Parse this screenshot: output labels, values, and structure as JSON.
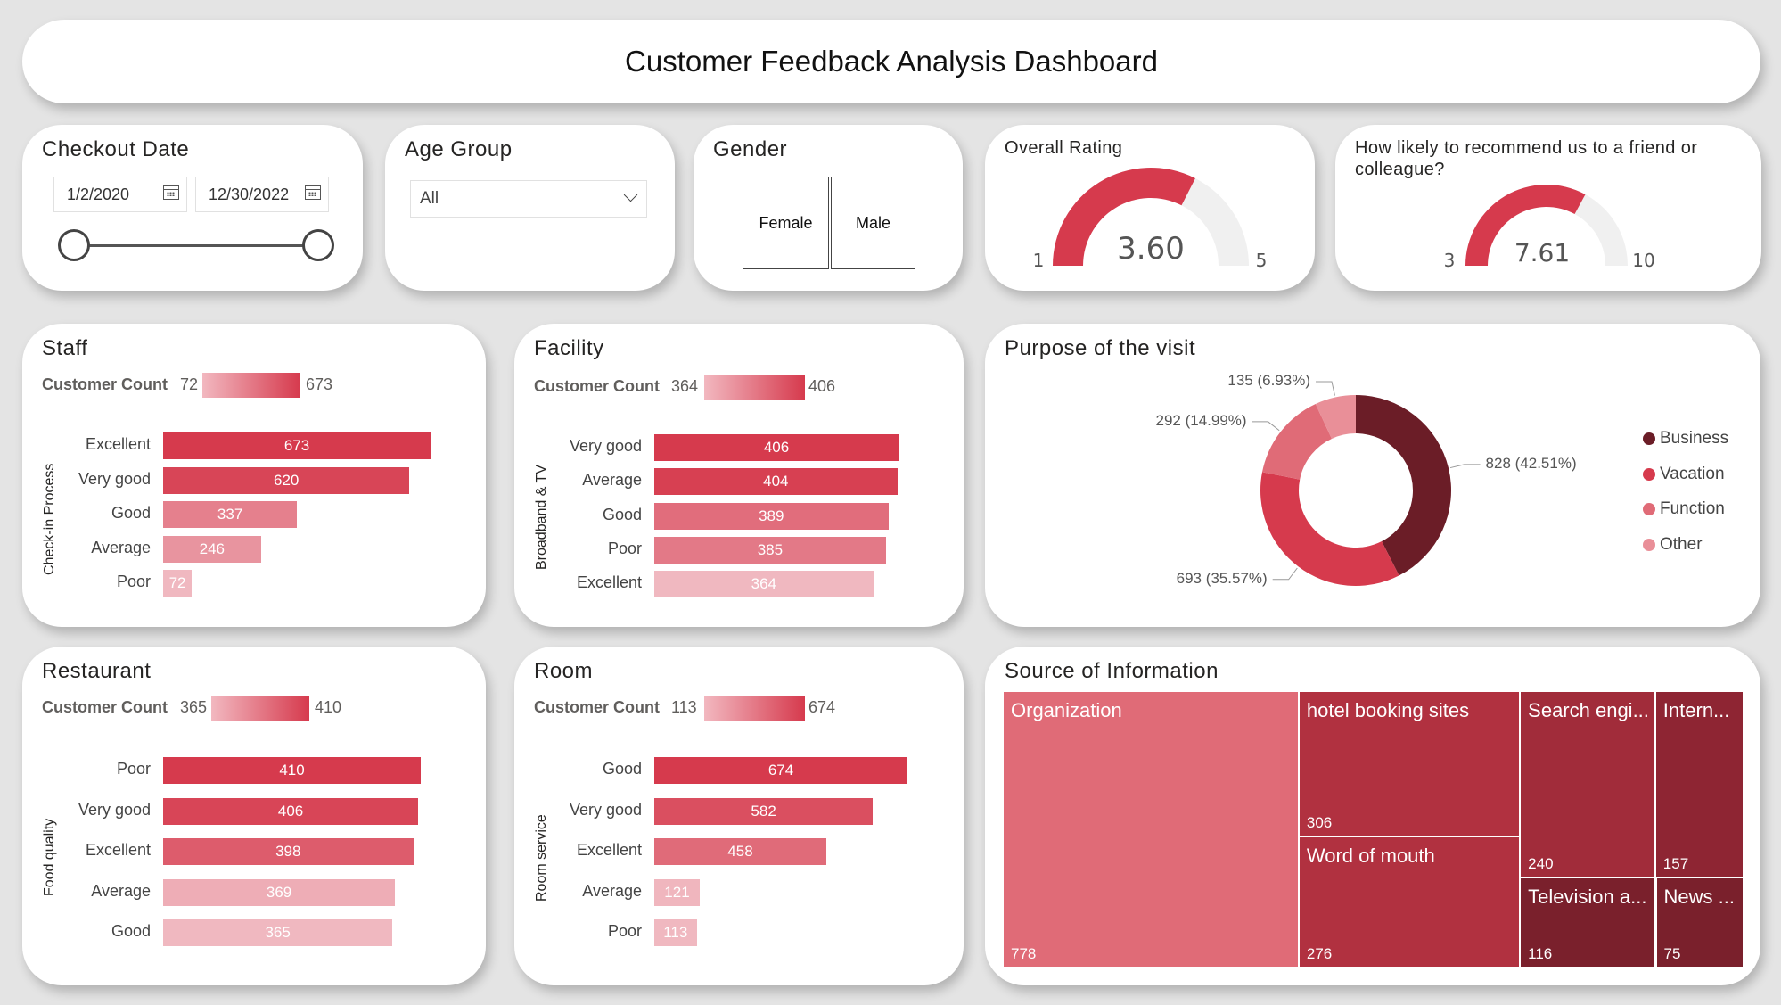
{
  "dashboard": {
    "title": "Customer Feedback Analysis Dashboard"
  },
  "checkout": {
    "title": "Checkout Date",
    "start": "1/2/2020",
    "end": "12/30/2022"
  },
  "age": {
    "title": "Age Group",
    "selected": "All"
  },
  "gender": {
    "title": "Gender",
    "options": [
      "Female",
      "Male"
    ]
  },
  "overall": {
    "title": "Overall Rating",
    "value": 3.6,
    "value_label": "3.60",
    "min": "1",
    "max": "5",
    "min_value": 1,
    "max_value": 5
  },
  "recommend": {
    "title": "How likely to recommend us to a friend or colleague?",
    "value": 7.61,
    "value_label": "7.61",
    "min": "3",
    "max": "10",
    "min_value": 3,
    "max_value": 10
  },
  "staff": {
    "title": "Staff",
    "cc_label": "Customer Count",
    "cc_min": "72",
    "cc_max": "673",
    "axis": "Check-in Process",
    "chart_data": {
      "type": "bar",
      "categories": [
        "Excellent",
        "Very good",
        "Good",
        "Average",
        "Poor"
      ],
      "values": [
        673,
        620,
        337,
        246,
        72
      ]
    }
  },
  "facility": {
    "title": "Facility",
    "cc_label": "Customer Count",
    "cc_min": "364",
    "cc_max": "406",
    "axis": "Broadband & TV",
    "chart_data": {
      "type": "bar",
      "categories": [
        "Very good",
        "Average",
        "Good",
        "Poor",
        "Excellent"
      ],
      "values": [
        406,
        404,
        389,
        385,
        364
      ]
    }
  },
  "restaurant": {
    "title": "Restaurant",
    "cc_label": "Customer Count",
    "cc_min": "365",
    "cc_max": "410",
    "axis": "Food quality",
    "chart_data": {
      "type": "bar",
      "categories": [
        "Poor",
        "Very good",
        "Excellent",
        "Average",
        "Good"
      ],
      "values": [
        410,
        406,
        398,
        369,
        365
      ]
    }
  },
  "room": {
    "title": "Room",
    "cc_label": "Customer Count",
    "cc_min": "113",
    "cc_max": "674",
    "axis": "Room service",
    "chart_data": {
      "type": "bar",
      "categories": [
        "Good",
        "Very good",
        "Excellent",
        "Average",
        "Poor"
      ],
      "values": [
        674,
        582,
        458,
        121,
        113
      ]
    }
  },
  "purpose": {
    "title": "Purpose of the visit",
    "chart_data": {
      "type": "pie",
      "categories": [
        "Business",
        "Vacation",
        "Function",
        "Other"
      ],
      "values": [
        828,
        693,
        292,
        135
      ],
      "labels": [
        "828 (42.51%)",
        "693 (35.57%)",
        "292 (14.99%)",
        "135 (6.93%)"
      ],
      "colors": [
        "#6b1d27",
        "#d63a4d",
        "#e06b77",
        "#e98f98"
      ]
    }
  },
  "source": {
    "title": "Source of Information",
    "chart_data": {
      "type": "treemap",
      "items": [
        {
          "name": "Organization",
          "value": 778
        },
        {
          "name": "hotel booking sites",
          "value": 306
        },
        {
          "name": "Word of mouth",
          "value": 276
        },
        {
          "name": "Search engi...",
          "value": 240
        },
        {
          "name": "Intern...",
          "value": 157
        },
        {
          "name": "Television a...",
          "value": 116
        },
        {
          "name": "News ...",
          "value": 75
        }
      ]
    }
  },
  "colors": {
    "accent": "#d63a4d",
    "dark": "#6b1d27",
    "gauge_bg": "#f0f0f0"
  }
}
